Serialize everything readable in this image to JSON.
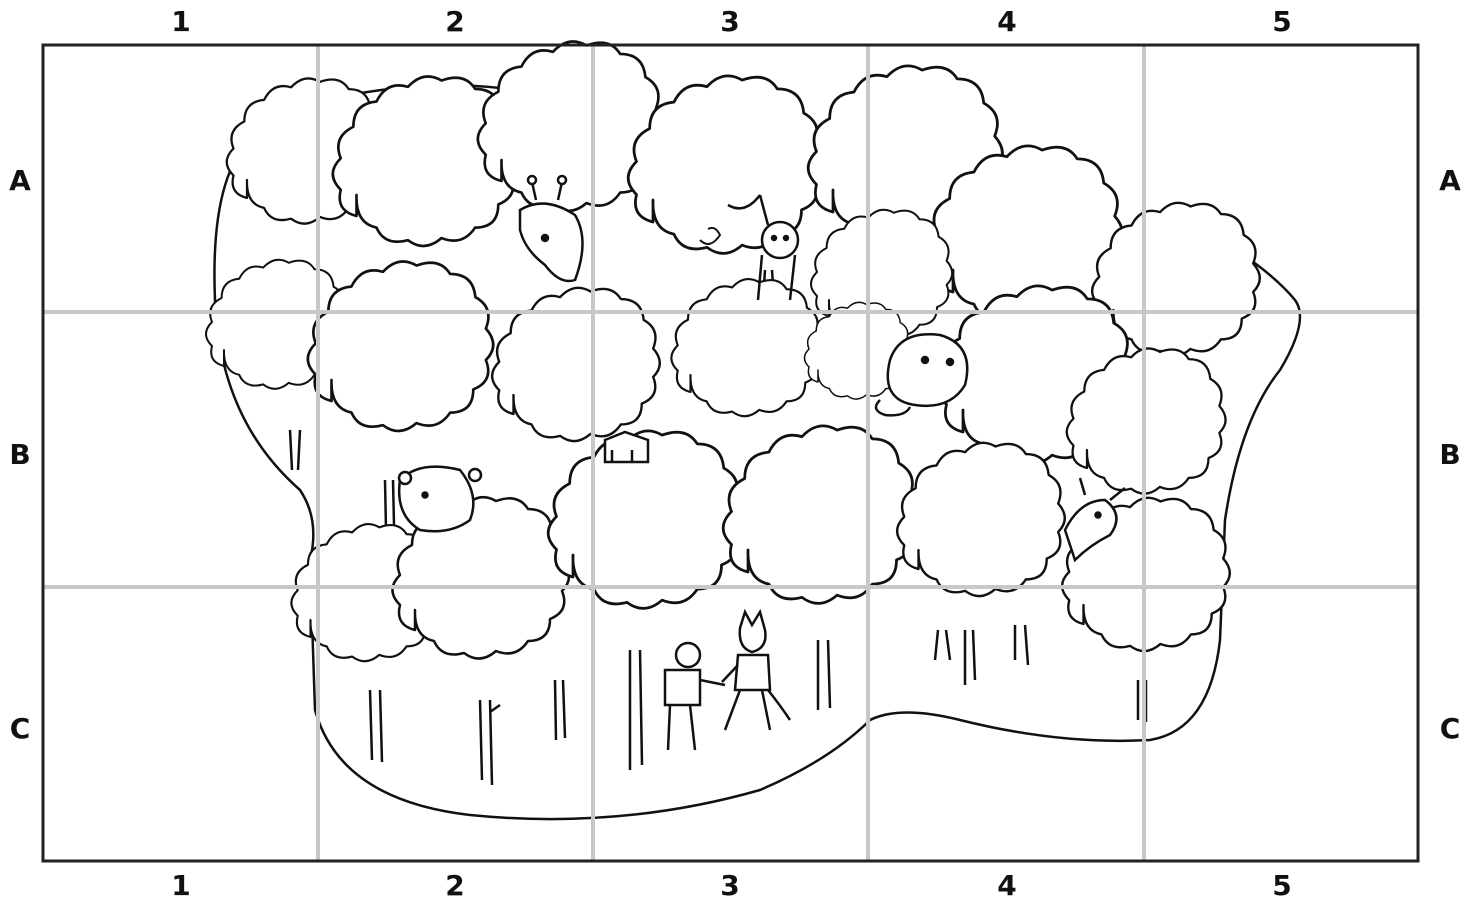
{
  "grid": {
    "columns": [
      "1",
      "2",
      "3",
      "4",
      "5"
    ],
    "rows": [
      "A",
      "B",
      "C"
    ],
    "line_color": "#c8c8c8",
    "border_color": "#222222"
  },
  "scene": {
    "ink_color": "#111111",
    "background": "#ffffff",
    "hidden_animals": [
      "giraffe",
      "monkey-hanging",
      "hamster",
      "bear",
      "deer",
      "bear-walker",
      "fox-walker"
    ],
    "objects": [
      "banana",
      "treehouse"
    ]
  }
}
